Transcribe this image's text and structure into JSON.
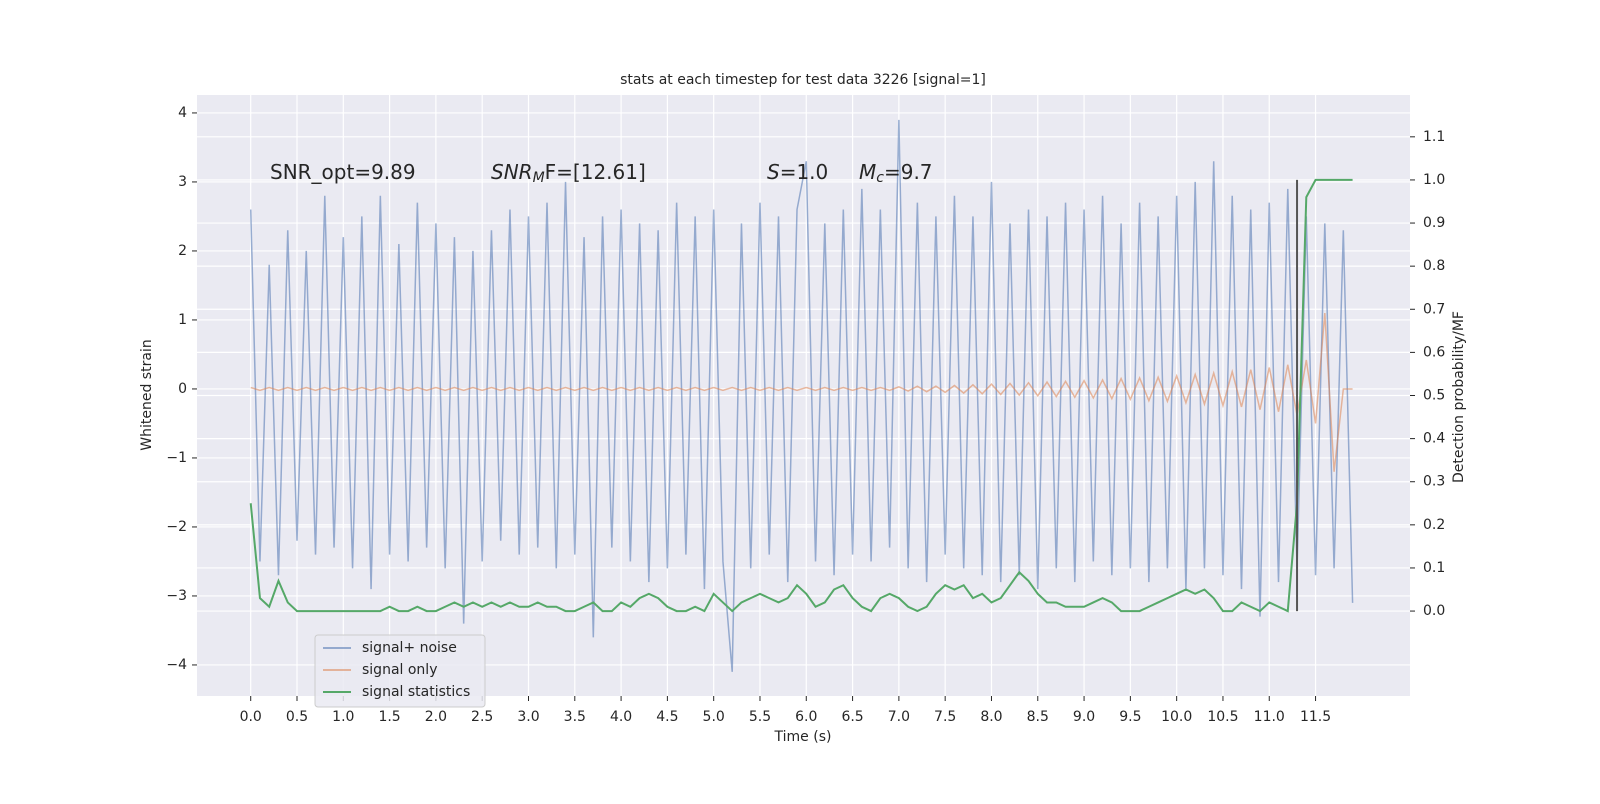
{
  "chart_data": {
    "type": "line",
    "title": "stats at each timestep for test data 3226 [signal=1]",
    "xlabel": "Time (s)",
    "ylabel": "Whitened strain",
    "y2label": "Detection probability/MF",
    "annotations": [
      [
        "SNR_opt=9.89"
      ],
      [
        "SNR",
        "M",
        "F=[12.61]"
      ],
      [
        "S",
        "=1.0"
      ],
      [
        "M",
        "c",
        "=9.7"
      ]
    ],
    "x": [
      0.0,
      0.1,
      0.2,
      0.3,
      0.4,
      0.5,
      0.6,
      0.7,
      0.8,
      0.9,
      1.0,
      1.1,
      1.2,
      1.3,
      1.4,
      1.5,
      1.6,
      1.7,
      1.8,
      1.9,
      2.0,
      2.1,
      2.2,
      2.3,
      2.4,
      2.5,
      2.6,
      2.7,
      2.8,
      2.9,
      3.0,
      3.1,
      3.2,
      3.3,
      3.4,
      3.5,
      3.6,
      3.7,
      3.8,
      3.9,
      4.0,
      4.1,
      4.2,
      4.3,
      4.4,
      4.5,
      4.6,
      4.7,
      4.8,
      4.9,
      5.0,
      5.1,
      5.2,
      5.3,
      5.4,
      5.5,
      5.6,
      5.7,
      5.8,
      5.9,
      6.0,
      6.1,
      6.2,
      6.3,
      6.4,
      6.5,
      6.6,
      6.7,
      6.8,
      6.9,
      7.0,
      7.1,
      7.2,
      7.3,
      7.4,
      7.5,
      7.6,
      7.7,
      7.8,
      7.9,
      8.0,
      8.1,
      8.2,
      8.3,
      8.4,
      8.5,
      8.6,
      8.7,
      8.8,
      8.9,
      9.0,
      9.1,
      9.2,
      9.3,
      9.4,
      9.5,
      9.6,
      9.7,
      9.8,
      9.9,
      10.0,
      10.1,
      10.2,
      10.3,
      10.4,
      10.5,
      10.6,
      10.7,
      10.8,
      10.9,
      11.0,
      11.1,
      11.2,
      11.3,
      11.4,
      11.5,
      11.6,
      11.7,
      11.8,
      11.9
    ],
    "series": [
      {
        "name": "signal+ noise",
        "color": "#4c72b0",
        "values": [
          2.6,
          -2.5,
          1.8,
          -2.7,
          2.3,
          -2.2,
          2.0,
          -2.4,
          2.8,
          -2.3,
          2.2,
          -2.6,
          2.5,
          -2.9,
          2.8,
          -2.4,
          2.1,
          -2.5,
          2.7,
          -2.3,
          2.4,
          -2.6,
          2.2,
          -3.4,
          2.0,
          -2.5,
          2.3,
          -2.2,
          2.6,
          -2.4,
          2.5,
          -2.3,
          2.7,
          -2.6,
          3.0,
          -2.4,
          2.2,
          -3.6,
          2.5,
          -2.3,
          2.6,
          -2.5,
          2.4,
          -2.8,
          2.3,
          -2.6,
          2.7,
          -2.4,
          2.5,
          -2.9,
          2.6,
          -2.5,
          -4.1,
          2.4,
          -2.6,
          2.7,
          -2.4,
          2.5,
          -2.8,
          2.6,
          3.3,
          -2.5,
          2.4,
          -2.7,
          2.6,
          -2.4,
          2.9,
          -2.5,
          2.6,
          -2.3,
          3.9,
          -2.6,
          2.7,
          -2.8,
          2.5,
          -2.4,
          2.8,
          -2.6,
          2.5,
          -2.7,
          3.0,
          -2.8,
          2.4,
          -2.7,
          2.6,
          -2.9,
          2.5,
          -2.6,
          2.7,
          -2.8,
          2.6,
          -2.5,
          2.8,
          -2.7,
          2.4,
          -2.6,
          2.7,
          -2.8,
          2.5,
          -2.6,
          2.8,
          -2.9,
          3.0,
          -2.6,
          3.3,
          -2.7,
          2.8,
          -2.9,
          2.6,
          -3.3,
          2.7,
          -2.8,
          2.9,
          -2.6,
          2.5,
          -2.7,
          2.4,
          -2.6,
          2.3,
          -3.1
        ]
      },
      {
        "name": "signal only",
        "color": "#dd8452",
        "values": [
          0.02,
          -0.02,
          0.02,
          -0.02,
          0.02,
          -0.02,
          0.02,
          -0.02,
          0.02,
          -0.02,
          0.02,
          -0.02,
          0.02,
          -0.02,
          0.02,
          -0.02,
          0.02,
          -0.02,
          0.02,
          -0.02,
          0.02,
          -0.02,
          0.02,
          -0.02,
          0.02,
          -0.02,
          0.02,
          -0.02,
          0.02,
          -0.02,
          0.02,
          -0.02,
          0.02,
          -0.02,
          0.02,
          -0.02,
          0.02,
          -0.02,
          0.02,
          -0.02,
          0.02,
          -0.02,
          0.02,
          -0.02,
          0.02,
          -0.02,
          0.02,
          -0.02,
          0.02,
          -0.02,
          0.02,
          -0.02,
          0.02,
          -0.02,
          0.02,
          -0.02,
          0.02,
          -0.02,
          0.02,
          -0.02,
          0.02,
          -0.02,
          0.02,
          -0.02,
          0.02,
          -0.02,
          0.02,
          -0.02,
          0.02,
          -0.02,
          0.03,
          -0.03,
          0.04,
          -0.04,
          0.04,
          -0.05,
          0.05,
          -0.06,
          0.06,
          -0.07,
          0.07,
          -0.08,
          0.08,
          -0.09,
          0.09,
          -0.1,
          0.1,
          -0.11,
          0.11,
          -0.12,
          0.12,
          -0.13,
          0.13,
          -0.14,
          0.15,
          -0.15,
          0.16,
          -0.17,
          0.17,
          -0.18,
          0.19,
          -0.2,
          0.21,
          -0.22,
          0.23,
          -0.24,
          0.25,
          -0.26,
          0.28,
          -0.3,
          0.31,
          -0.33,
          0.35,
          -0.38,
          0.42,
          -0.5,
          1.1,
          -1.2,
          0,
          0
        ]
      },
      {
        "name": "signal statistics",
        "color": "#55a868",
        "axis": "y2",
        "values": [
          0.25,
          0.03,
          0.01,
          0.07,
          0.02,
          0.0,
          0.0,
          0.0,
          0.0,
          0.0,
          0.0,
          0.0,
          0.0,
          0.0,
          0.0,
          0.01,
          0.0,
          0.0,
          0.01,
          0.0,
          0.0,
          0.01,
          0.02,
          0.01,
          0.02,
          0.01,
          0.02,
          0.01,
          0.02,
          0.01,
          0.01,
          0.02,
          0.01,
          0.01,
          0.0,
          0.0,
          0.01,
          0.02,
          0.0,
          0.0,
          0.02,
          0.01,
          0.03,
          0.04,
          0.03,
          0.01,
          0.0,
          0.0,
          0.01,
          0.0,
          0.04,
          0.02,
          0.0,
          0.02,
          0.03,
          0.04,
          0.03,
          0.02,
          0.03,
          0.06,
          0.04,
          0.01,
          0.02,
          0.05,
          0.06,
          0.03,
          0.01,
          0.0,
          0.03,
          0.04,
          0.03,
          0.01,
          0.0,
          0.01,
          0.04,
          0.06,
          0.05,
          0.06,
          0.03,
          0.04,
          0.02,
          0.03,
          0.06,
          0.09,
          0.07,
          0.04,
          0.02,
          0.02,
          0.01,
          0.01,
          0.01,
          0.02,
          0.03,
          0.02,
          0.0,
          0.0,
          0.0,
          0.01,
          0.02,
          0.03,
          0.04,
          0.05,
          0.04,
          0.05,
          0.03,
          0.0,
          0.0,
          0.02,
          0.01,
          0.0,
          0.02,
          0.01,
          0.0,
          0.25,
          0.96,
          1.0,
          1.0,
          1.0,
          1.0,
          1.0
        ]
      }
    ],
    "vline": {
      "x": 11.3,
      "y2": [
        0,
        1.0
      ],
      "color": "#555555"
    },
    "xlim": [
      -0.58,
      12.52
    ],
    "xticks": [
      {
        "value": 0,
        "label": "0.0"
      },
      0.5,
      {
        "value": 1,
        "label": "1.0"
      },
      1.5,
      {
        "value": 2,
        "label": "2.0"
      },
      2.5,
      {
        "value": 3,
        "label": "3.0"
      },
      3.5,
      {
        "value": 4,
        "label": "4.0"
      },
      4.5,
      {
        "value": 5,
        "label": "5.0"
      },
      5.5,
      {
        "value": 6,
        "label": "6.0"
      },
      6.5,
      {
        "value": 7,
        "label": "7.0"
      },
      7.5,
      {
        "value": 8,
        "label": "8.0"
      },
      8.5,
      {
        "value": 9,
        "label": "9.0"
      },
      9.5,
      {
        "value": 10,
        "label": "10.0"
      },
      10.5,
      {
        "value": 11,
        "label": "11.0"
      },
      11.5
    ],
    "ylim": [
      -4.45,
      4.26
    ],
    "yticks": [
      {
        "value": -4,
        "label": "−4"
      },
      {
        "value": -3,
        "label": "−3"
      },
      {
        "value": -2,
        "label": "−2"
      },
      {
        "value": -1,
        "label": "−1"
      },
      0,
      1,
      2,
      3,
      4
    ],
    "y2lim": [
      -0.197,
      1.197
    ],
    "y2ticks": [
      {
        "value": 0,
        "label": "0.0"
      },
      0.1,
      0.2,
      0.3,
      0.4,
      0.5,
      0.6,
      0.7,
      0.8,
      0.9,
      {
        "value": 1,
        "label": "1.0"
      },
      1.1
    ],
    "grid": true,
    "legend": "lower left"
  }
}
